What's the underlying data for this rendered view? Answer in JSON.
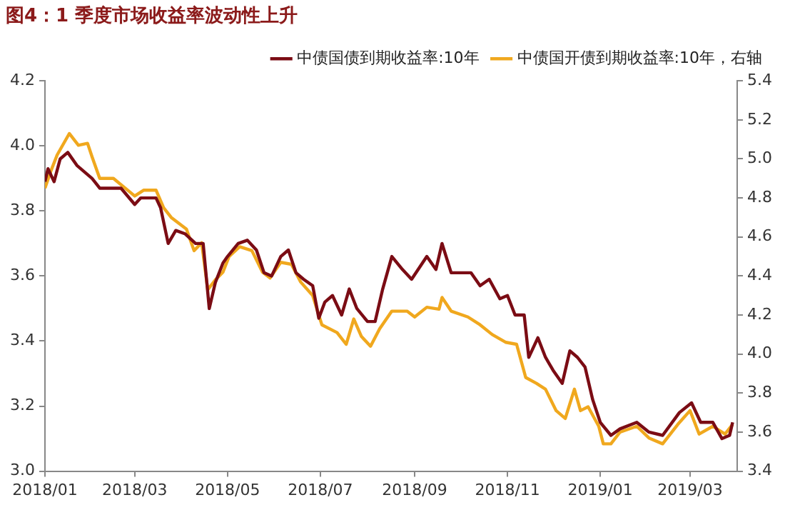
{
  "chart_data": {
    "type": "line",
    "title": "图4：1 季度市场收益率波动性上升",
    "series": [
      {
        "name": "中债国债到期收益率:10年",
        "color": "#7b0c14",
        "x": [
          "2018-01-01",
          "2018-01-03",
          "2018-01-07",
          "2018-01-11",
          "2018-01-16",
          "2018-01-22",
          "2018-02-01",
          "2018-02-06",
          "2018-02-20",
          "2018-03-01",
          "2018-03-05",
          "2018-03-15",
          "2018-03-18",
          "2018-03-23",
          "2018-03-28",
          "2018-04-03",
          "2018-04-10",
          "2018-04-15",
          "2018-04-19",
          "2018-04-23",
          "2018-04-28",
          "2018-05-01",
          "2018-05-08",
          "2018-05-14",
          "2018-05-20",
          "2018-05-25",
          "2018-05-30",
          "2018-06-05",
          "2018-06-10",
          "2018-06-15",
          "2018-06-20",
          "2018-06-26",
          "2018-06-30",
          "2018-07-04",
          "2018-07-09",
          "2018-07-15",
          "2018-07-20",
          "2018-07-25",
          "2018-08-01",
          "2018-08-06",
          "2018-08-11",
          "2018-08-17",
          "2018-08-24",
          "2018-08-30",
          "2018-09-09",
          "2018-09-15",
          "2018-09-19",
          "2018-09-25",
          "2018-09-30",
          "2018-10-08",
          "2018-10-14",
          "2018-10-20",
          "2018-10-27",
          "2018-11-01",
          "2018-11-06",
          "2018-11-12",
          "2018-11-15",
          "2018-11-21",
          "2018-11-26",
          "2018-12-01",
          "2018-12-07",
          "2018-12-12",
          "2018-12-17",
          "2018-12-22",
          "2018-12-27",
          "2019-01-01",
          "2019-01-08",
          "2019-01-14",
          "2019-01-25",
          "2019-02-02",
          "2019-02-11",
          "2019-02-22",
          "2019-03-02",
          "2019-03-08",
          "2019-03-16",
          "2019-03-22",
          "2019-03-27",
          "2019-03-29"
        ],
        "values": [
          3.89,
          3.93,
          3.89,
          3.96,
          3.98,
          3.94,
          3.9,
          3.87,
          3.87,
          3.82,
          3.84,
          3.84,
          3.81,
          3.7,
          3.74,
          3.73,
          3.7,
          3.7,
          3.5,
          3.58,
          3.64,
          3.66,
          3.7,
          3.71,
          3.68,
          3.61,
          3.6,
          3.66,
          3.68,
          3.61,
          3.59,
          3.57,
          3.47,
          3.52,
          3.54,
          3.48,
          3.56,
          3.5,
          3.46,
          3.46,
          3.56,
          3.66,
          3.62,
          3.59,
          3.66,
          3.62,
          3.7,
          3.61,
          3.61,
          3.61,
          3.57,
          3.59,
          3.53,
          3.54,
          3.48,
          3.48,
          3.35,
          3.41,
          3.35,
          3.31,
          3.27,
          3.37,
          3.35,
          3.32,
          3.22,
          3.15,
          3.11,
          3.13,
          3.15,
          3.12,
          3.11,
          3.18,
          3.21,
          3.15,
          3.15,
          3.1,
          3.11,
          3.15
        ]
      },
      {
        "name": "中债国开债到期收益率:10年，右轴",
        "color": "#f0a81e",
        "axis": "y2",
        "x": [
          "2018-01-01",
          "2018-01-05",
          "2018-01-09",
          "2018-01-17",
          "2018-01-23",
          "2018-01-29",
          "2018-02-01",
          "2018-02-06",
          "2018-02-15",
          "2018-03-01",
          "2018-03-07",
          "2018-03-15",
          "2018-03-20",
          "2018-03-25",
          "2018-04-04",
          "2018-04-09",
          "2018-04-14",
          "2018-04-18",
          "2018-04-23",
          "2018-04-28",
          "2018-05-02",
          "2018-05-09",
          "2018-05-17",
          "2018-05-24",
          "2018-05-29",
          "2018-06-05",
          "2018-06-12",
          "2018-06-18",
          "2018-06-26",
          "2018-07-02",
          "2018-07-12",
          "2018-07-18",
          "2018-07-23",
          "2018-07-28",
          "2018-08-03",
          "2018-08-09",
          "2018-08-17",
          "2018-08-27",
          "2018-09-01",
          "2018-09-09",
          "2018-09-17",
          "2018-09-19",
          "2018-09-25",
          "2018-10-06",
          "2018-10-14",
          "2018-10-22",
          "2018-10-31",
          "2018-11-07",
          "2018-11-13",
          "2018-11-20",
          "2018-11-26",
          "2018-12-03",
          "2018-12-09",
          "2018-12-15",
          "2018-12-19",
          "2018-12-24",
          "2018-12-31",
          "2019-01-03",
          "2019-01-08",
          "2019-01-14",
          "2019-01-25",
          "2019-02-02",
          "2019-02-11",
          "2019-02-21",
          "2019-03-01",
          "2019-03-07",
          "2019-03-16",
          "2019-03-24",
          "2019-03-29"
        ],
        "values": [
          4.85,
          4.94,
          5.02,
          5.13,
          5.07,
          5.08,
          5.01,
          4.9,
          4.9,
          4.81,
          4.84,
          4.84,
          4.75,
          4.7,
          4.64,
          4.53,
          4.57,
          4.33,
          4.38,
          4.42,
          4.5,
          4.55,
          4.53,
          4.42,
          4.39,
          4.47,
          4.46,
          4.37,
          4.3,
          4.15,
          4.11,
          4.05,
          4.18,
          4.09,
          4.04,
          4.13,
          4.22,
          4.22,
          4.19,
          4.24,
          4.23,
          4.29,
          4.22,
          4.19,
          4.15,
          4.1,
          4.06,
          4.05,
          3.88,
          3.85,
          3.82,
          3.71,
          3.67,
          3.82,
          3.71,
          3.73,
          3.63,
          3.54,
          3.54,
          3.6,
          3.63,
          3.57,
          3.54,
          3.64,
          3.71,
          3.59,
          3.63,
          3.59,
          3.64
        ]
      }
    ],
    "xlim": [
      "2018-01-01",
      "2019-04-01"
    ],
    "xticks": [
      {
        "value": "2018-01-01",
        "label": "2018/01"
      },
      {
        "value": "2018-03-01",
        "label": "2018/03"
      },
      {
        "value": "2018-05-01",
        "label": "2018/05"
      },
      {
        "value": "2018-07-01",
        "label": "2018/07"
      },
      {
        "value": "2018-09-01",
        "label": "2018/09"
      },
      {
        "value": "2018-11-01",
        "label": "2018/11"
      },
      {
        "value": "2019-01-01",
        "label": "2019/01"
      },
      {
        "value": "2019-03-01",
        "label": "2019/03"
      }
    ],
    "ylim": [
      3.0,
      4.2
    ],
    "yticks": [
      {
        "value": 3.0,
        "label": "3.0"
      },
      {
        "value": 3.2,
        "label": "3.2"
      },
      {
        "value": 3.4,
        "label": "3.4"
      },
      {
        "value": 3.6,
        "label": "3.6"
      },
      {
        "value": 3.8,
        "label": "3.8"
      },
      {
        "value": 4.0,
        "label": "4.0"
      },
      {
        "value": 4.2,
        "label": "4.2"
      }
    ],
    "y2lim": [
      3.4,
      5.4
    ],
    "y2ticks": [
      {
        "value": 3.4,
        "label": "3.4"
      },
      {
        "value": 3.6,
        "label": "3.6"
      },
      {
        "value": 3.8,
        "label": "3.8"
      },
      {
        "value": 4.0,
        "label": "4.0"
      },
      {
        "value": 4.2,
        "label": "4.2"
      },
      {
        "value": 4.4,
        "label": "4.4"
      },
      {
        "value": 4.6,
        "label": "4.6"
      },
      {
        "value": 4.8,
        "label": "4.8"
      },
      {
        "value": 5.0,
        "label": "5.0"
      },
      {
        "value": 5.2,
        "label": "5.2"
      },
      {
        "value": 5.4,
        "label": "5.4"
      }
    ],
    "legend": "top right",
    "marker": "none",
    "line_style": "solid",
    "grid": false
  }
}
